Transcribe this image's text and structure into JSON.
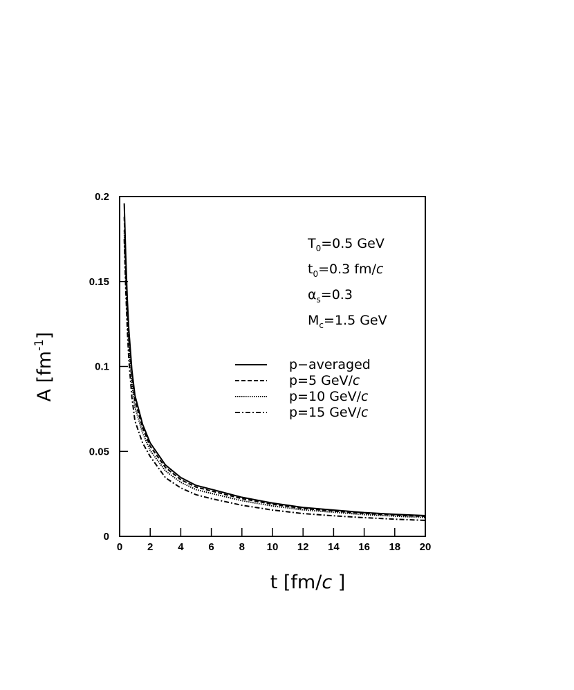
{
  "chart_data": {
    "type": "line",
    "x_label": {
      "text": "t [fm/",
      "italic": "c",
      "tail": " ]"
    },
    "y_label": {
      "text": "A [fm",
      "sup": "-1",
      "tail": "]"
    },
    "annotations": [
      {
        "symbol": "T",
        "sub": "0",
        "text": "=0.5 GeV"
      },
      {
        "symbol": "t",
        "sub": "0",
        "text": "=0.3 fm/",
        "italic": "c"
      },
      {
        "symbol": "α",
        "sub": "s",
        "text": "=0.3"
      },
      {
        "symbol": "M",
        "sub": "c",
        "text": "=1.5 GeV"
      }
    ],
    "x": [
      0.3,
      0.4,
      0.5,
      0.6,
      0.8,
      1,
      1.5,
      2,
      3,
      4,
      5,
      6,
      8,
      10,
      12,
      14,
      16,
      18,
      20
    ],
    "series": [
      {
        "name": "p−averaged",
        "color": "#000",
        "dash": "solid",
        "values": [
          0.196,
          0.165,
          0.14,
          0.122,
          0.098,
          0.083,
          0.066,
          0.055,
          0.042,
          0.0346,
          0.03,
          0.0277,
          0.023,
          0.0196,
          0.017,
          0.0155,
          0.014,
          0.013,
          0.0122
        ]
      },
      {
        "name": "p=5 GeV/",
        "name_italic": "c",
        "color": "#000",
        "dash": "dashed",
        "values": [
          0.188,
          0.159,
          0.135,
          0.118,
          0.095,
          0.08,
          0.064,
          0.053,
          0.0405,
          0.0334,
          0.029,
          0.0267,
          0.0222,
          0.0189,
          0.0164,
          0.0149,
          0.0135,
          0.0125,
          0.0117
        ]
      },
      {
        "name": "p=10 GeV/",
        "name_italic": "c",
        "color": "#000",
        "dash": "dotted",
        "values": [
          0.18,
          0.152,
          0.129,
          0.112,
          0.09,
          0.076,
          0.061,
          0.0505,
          0.0385,
          0.0318,
          0.0275,
          0.0253,
          0.021,
          0.0179,
          0.0156,
          0.0142,
          0.0128,
          0.0119,
          0.0111
        ]
      },
      {
        "name": "p=15 GeV/",
        "name_italic": "c",
        "color": "#000",
        "dash": "dashdot",
        "values": [
          0.175,
          0.145,
          0.122,
          0.104,
          0.082,
          0.068,
          0.055,
          0.047,
          0.0345,
          0.0285,
          0.0245,
          0.0222,
          0.0183,
          0.0155,
          0.0134,
          0.0121,
          0.011,
          0.0101,
          0.0094
        ]
      }
    ],
    "xlim": [
      0,
      20
    ],
    "xticks": [
      0,
      2,
      4,
      6,
      8,
      10,
      12,
      14,
      16,
      18,
      20
    ],
    "ylim": [
      0,
      0.2
    ],
    "yticks": [
      0,
      0.05,
      0.1,
      0.15,
      0.2
    ]
  }
}
